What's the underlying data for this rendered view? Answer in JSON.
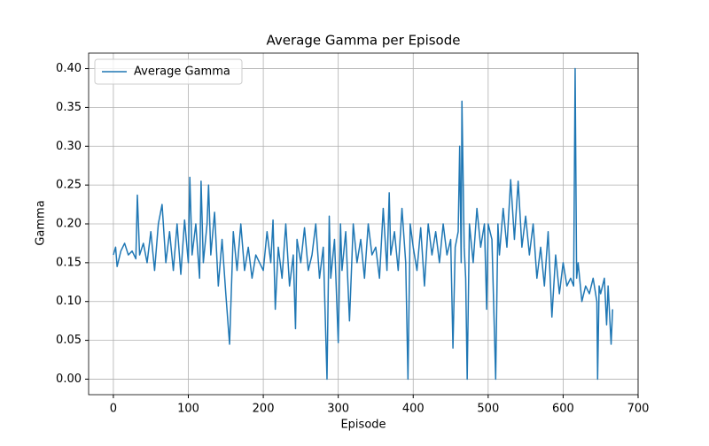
{
  "chart_data": {
    "type": "line",
    "title": "Average Gamma per Episode",
    "x_label": "Episode",
    "y_label": "Gamma",
    "x": [
      0,
      3,
      5,
      10,
      15,
      20,
      25,
      30,
      32,
      35,
      40,
      45,
      50,
      55,
      60,
      65,
      70,
      75,
      80,
      85,
      90,
      95,
      100,
      102,
      105,
      110,
      115,
      117,
      120,
      125,
      127,
      130,
      135,
      140,
      145,
      150,
      155,
      160,
      165,
      170,
      175,
      180,
      185,
      190,
      195,
      200,
      205,
      210,
      213,
      216,
      220,
      225,
      230,
      235,
      240,
      243,
      245,
      250,
      255,
      260,
      265,
      270,
      275,
      280,
      285,
      288,
      290,
      295,
      300,
      303,
      305,
      310,
      315,
      320,
      325,
      330,
      335,
      340,
      345,
      350,
      355,
      360,
      365,
      368,
      370,
      375,
      380,
      385,
      390,
      393,
      396,
      400,
      405,
      410,
      415,
      420,
      425,
      430,
      435,
      440,
      445,
      450,
      453,
      456,
      460,
      462,
      464,
      465,
      468,
      470,
      472,
      475,
      480,
      485,
      490,
      495,
      498,
      500,
      505,
      510,
      513,
      515,
      520,
      525,
      530,
      535,
      540,
      545,
      550,
      555,
      560,
      565,
      570,
      575,
      580,
      585,
      590,
      595,
      600,
      605,
      610,
      614,
      616,
      618,
      620,
      625,
      630,
      635,
      640,
      645,
      646,
      648,
      650,
      655,
      658,
      660,
      664,
      666
    ],
    "series": [
      {
        "name": "Average Gamma",
        "color": "#1f77b4",
        "values": [
          0.16,
          0.17,
          0.145,
          0.165,
          0.175,
          0.16,
          0.165,
          0.155,
          0.237,
          0.16,
          0.175,
          0.15,
          0.19,
          0.14,
          0.2,
          0.225,
          0.15,
          0.19,
          0.14,
          0.2,
          0.135,
          0.205,
          0.15,
          0.26,
          0.16,
          0.2,
          0.13,
          0.255,
          0.15,
          0.2,
          0.25,
          0.16,
          0.215,
          0.12,
          0.18,
          0.11,
          0.045,
          0.19,
          0.14,
          0.2,
          0.14,
          0.17,
          0.13,
          0.16,
          0.15,
          0.14,
          0.19,
          0.15,
          0.205,
          0.09,
          0.17,
          0.13,
          0.2,
          0.12,
          0.16,
          0.065,
          0.18,
          0.15,
          0.195,
          0.14,
          0.16,
          0.2,
          0.13,
          0.17,
          0.0,
          0.21,
          0.13,
          0.18,
          0.047,
          0.2,
          0.14,
          0.19,
          0.075,
          0.2,
          0.15,
          0.18,
          0.13,
          0.2,
          0.16,
          0.17,
          0.13,
          0.22,
          0.14,
          0.24,
          0.16,
          0.19,
          0.14,
          0.22,
          0.15,
          0.0,
          0.2,
          0.17,
          0.14,
          0.195,
          0.12,
          0.2,
          0.16,
          0.19,
          0.15,
          0.2,
          0.16,
          0.18,
          0.04,
          0.17,
          0.19,
          0.3,
          0.15,
          0.358,
          0.17,
          0.13,
          0.0,
          0.2,
          0.15,
          0.22,
          0.17,
          0.2,
          0.09,
          0.2,
          0.18,
          0.0,
          0.2,
          0.16,
          0.22,
          0.17,
          0.257,
          0.18,
          0.255,
          0.17,
          0.21,
          0.16,
          0.2,
          0.13,
          0.17,
          0.12,
          0.19,
          0.08,
          0.16,
          0.11,
          0.15,
          0.12,
          0.13,
          0.12,
          0.4,
          0.13,
          0.15,
          0.1,
          0.12,
          0.11,
          0.13,
          0.1,
          0.0,
          0.12,
          0.11,
          0.13,
          0.07,
          0.12,
          0.045,
          0.09
        ]
      }
    ],
    "xlim": [
      -33,
      700
    ],
    "ylim": [
      -0.02,
      0.42
    ],
    "xticks": [
      0,
      100,
      200,
      300,
      400,
      500,
      600,
      700
    ],
    "yticks": [
      {
        "value": 0,
        "label": "0.00"
      },
      {
        "value": 0.05,
        "label": "0.05"
      },
      {
        "value": 0.1,
        "label": "0.10"
      },
      {
        "value": 0.15,
        "label": "0.15"
      },
      {
        "value": 0.2,
        "label": "0.20"
      },
      {
        "value": 0.25,
        "label": "0.25"
      },
      {
        "value": 0.3,
        "label": "0.30"
      },
      {
        "value": 0.35,
        "label": "0.35"
      },
      {
        "value": 0.4,
        "label": "0.40"
      }
    ],
    "grid": true,
    "legend": "upper left"
  }
}
